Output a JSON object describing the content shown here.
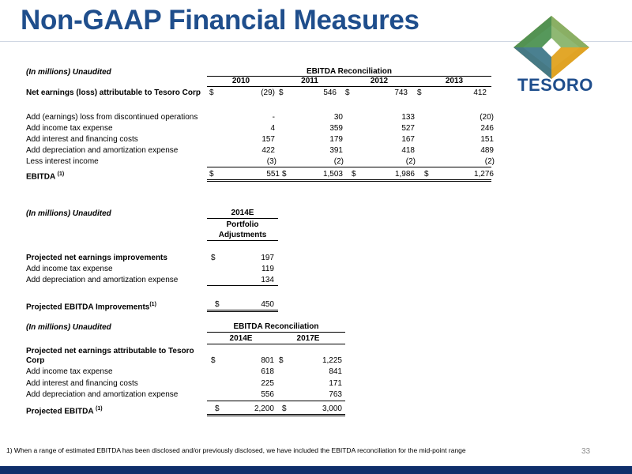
{
  "title": "Non-GAAP Financial Measures",
  "logo": {
    "name": "TESORO",
    "colors": {
      "gold": "#e0a325",
      "green": "#3a8f5a",
      "navy": "#1f4e8c"
    }
  },
  "accent_color": "#1f4e8c",
  "table1": {
    "unit_note": "(In millions) Unaudited",
    "group_header": "EBITDA Reconciliation",
    "years": [
      "2010",
      "2011",
      "2012",
      "2013"
    ],
    "rows": [
      {
        "label": "Net earnings (loss) attributable to Tesoro Corp",
        "values": [
          "(29)",
          "546",
          "743",
          "412"
        ]
      },
      {
        "label": "Add (earnings) loss from discontinued operations",
        "values": [
          "-",
          "30",
          "133",
          "(20)"
        ]
      },
      {
        "label": "Add income tax expense",
        "values": [
          "4",
          "359",
          "527",
          "246"
        ]
      },
      {
        "label": "Add interest and financing costs",
        "values": [
          "157",
          "179",
          "167",
          "151"
        ]
      },
      {
        "label": "Add depreciation and amortization expense",
        "values": [
          "422",
          "391",
          "418",
          "489"
        ]
      },
      {
        "label": "Less interest income",
        "values": [
          "(3)",
          "(2)",
          "(2)",
          "(2)"
        ]
      }
    ],
    "total": {
      "label": "EBITDA",
      "sup": "(1)",
      "values": [
        "551",
        "1,503",
        "1,986",
        "1,276"
      ]
    }
  },
  "table2": {
    "unit_note": "(In millions) Unaudited",
    "col_year": "2014E",
    "col_label_1": "Portfolio",
    "col_label_2": "Adjustments",
    "rows": [
      {
        "label": "Projected net earnings improvements",
        "value": "197"
      },
      {
        "label": "Add income tax expense",
        "value": "119"
      },
      {
        "label": "Add depreciation and amortization expense",
        "value": "134"
      }
    ],
    "total": {
      "label": "Projected EBITDA Improvements",
      "sup": "(1)",
      "value": "450"
    }
  },
  "table3": {
    "unit_note": "(In millions) Unaudited",
    "group_header": "EBITDA Reconciliation",
    "years": [
      "2014E",
      "2017E"
    ],
    "rows": [
      {
        "label_1": "Projected net earnings attributable to Tesoro",
        "label_2": "Corp",
        "values": [
          "801",
          "1,225"
        ]
      },
      {
        "label": "Add income tax expense",
        "values": [
          "618",
          "841"
        ]
      },
      {
        "label": "Add interest and financing costs",
        "values": [
          "225",
          "171"
        ]
      },
      {
        "label": "Add depreciation and amortization expense",
        "values": [
          "556",
          "763"
        ]
      }
    ],
    "total": {
      "label": "Projected EBITDA",
      "sup": "(1)",
      "values": [
        "2,200",
        "3,000"
      ]
    }
  },
  "currency_symbol": "$",
  "footnote": "1) When a range of estimated EBITDA has been disclosed and/or previously disclosed, we have included the EBITDA reconciliation for the mid-point range",
  "page_number": "33"
}
